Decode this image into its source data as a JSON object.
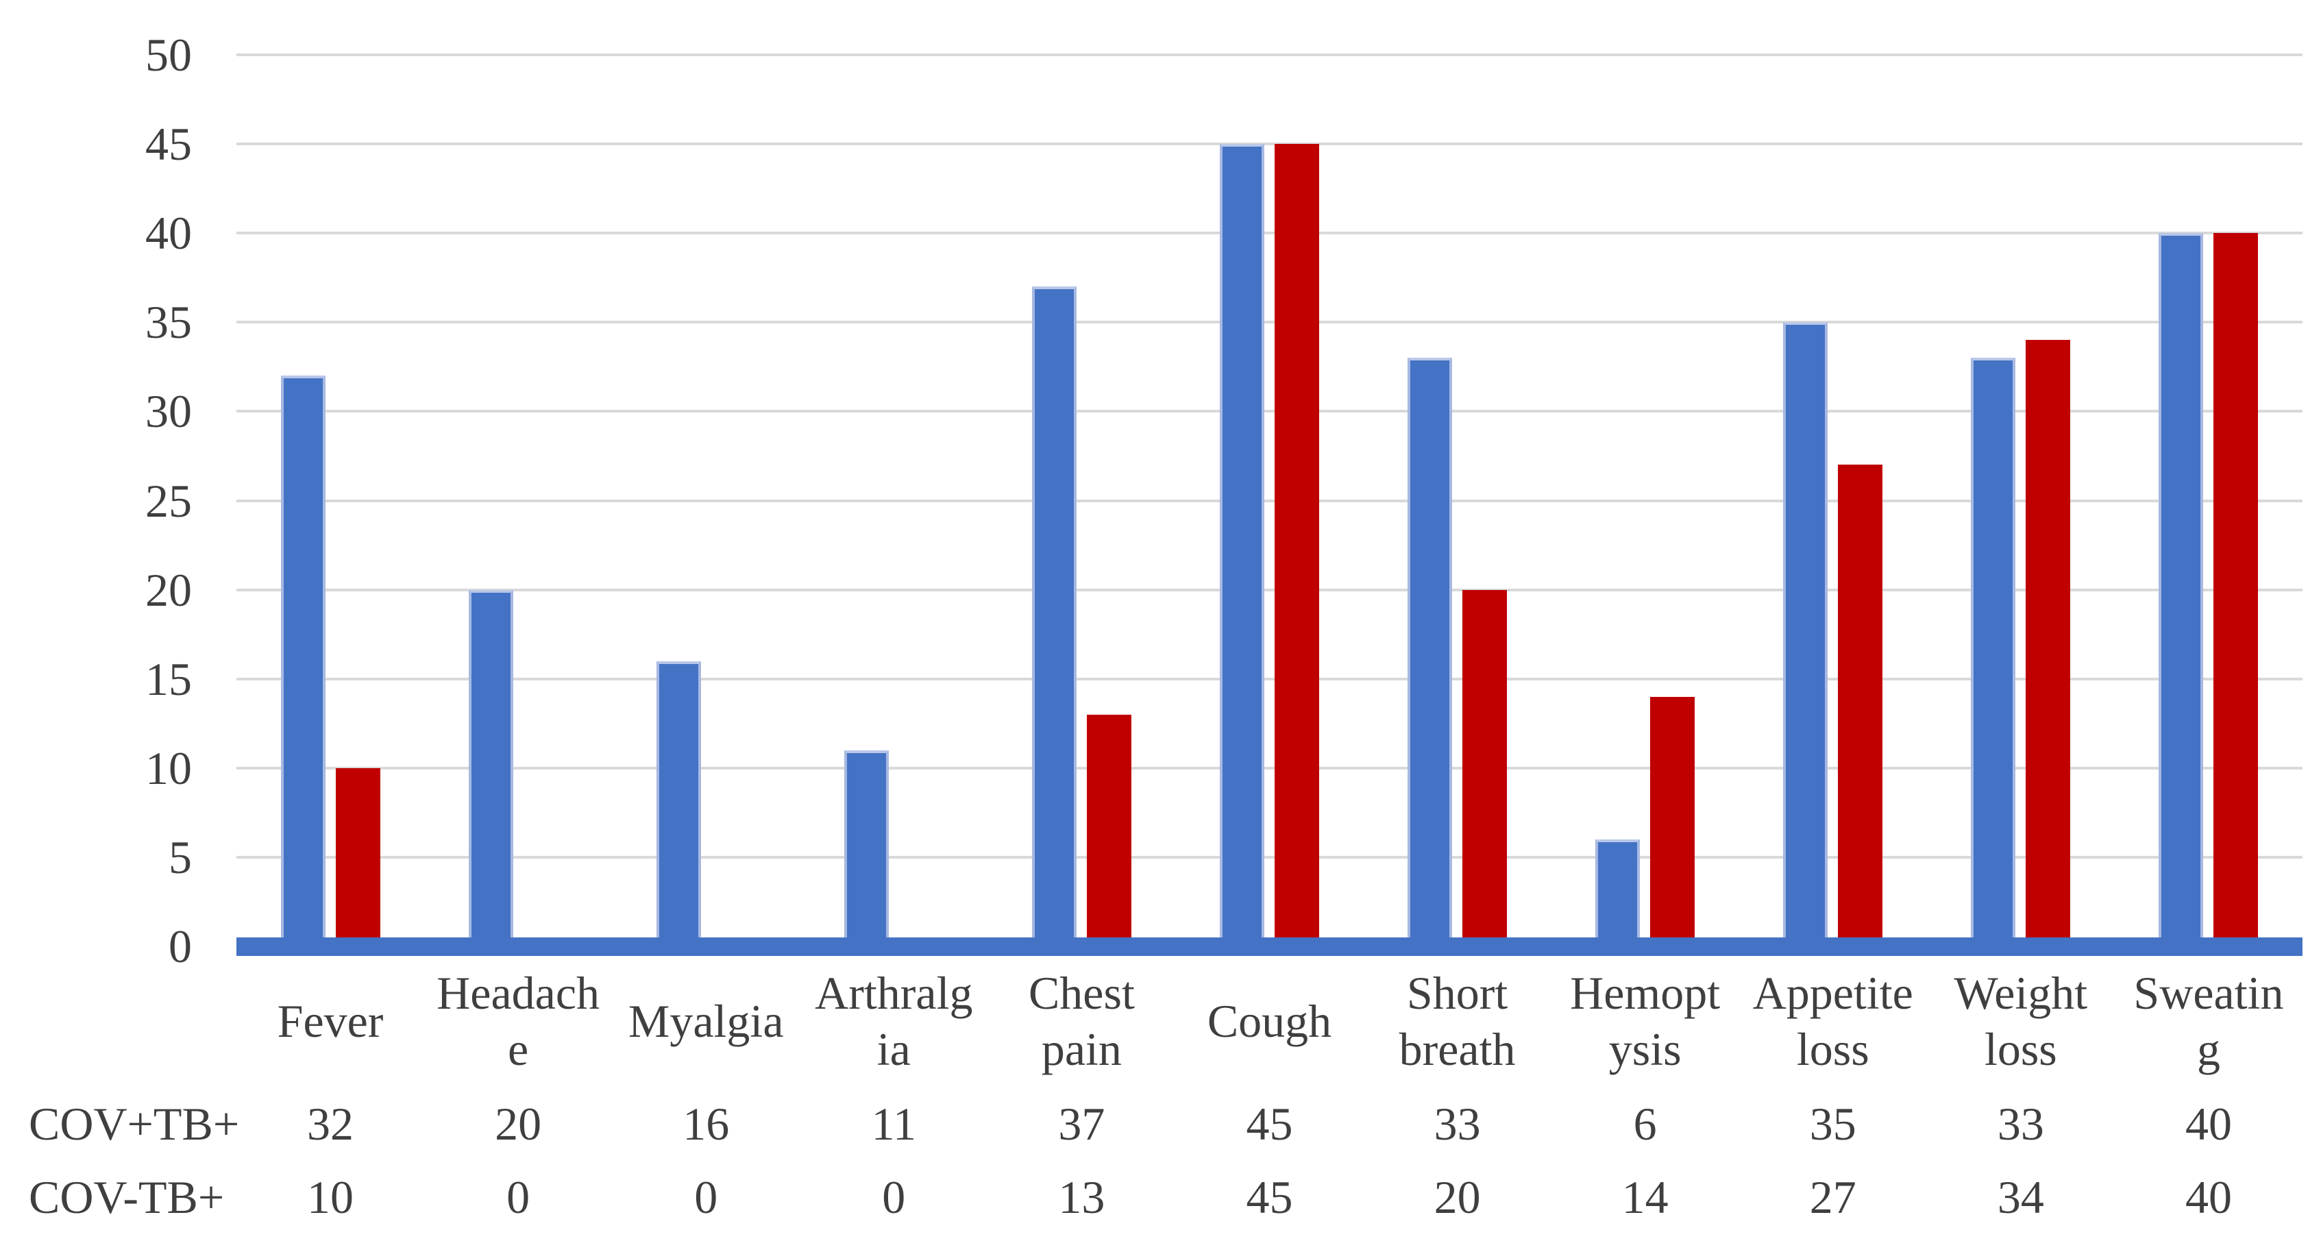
{
  "figure": {
    "background_color": "#FFFFFF",
    "text_color": "#3F3F3F"
  },
  "chart_data": {
    "type": "bar",
    "title": "",
    "xlabel": "",
    "ylabel": "",
    "categories": [
      "Fever",
      "Headache",
      "Myalgia",
      "Arthralgia",
      "Chest pain",
      "Cough",
      "Short breath",
      "Hemoptysis",
      "Appetite loss",
      "Weight loss",
      "Sweating"
    ],
    "categories_display": [
      [
        "Fever"
      ],
      [
        "Headach",
        "e"
      ],
      [
        "Myalgia"
      ],
      [
        "Arthralg",
        "ia"
      ],
      [
        "Chest",
        "pain"
      ],
      [
        "Cough"
      ],
      [
        "Short",
        "breath"
      ],
      [
        "Hemopt",
        "ysis"
      ],
      [
        "Appetite",
        "loss"
      ],
      [
        "Weight",
        "loss"
      ],
      [
        "Sweatin",
        "g"
      ]
    ],
    "series": [
      {
        "name": "COV+TB+",
        "color": "#4472C4",
        "edge": true,
        "values": [
          32,
          20,
          16,
          11,
          37,
          45,
          33,
          6,
          35,
          33,
          40
        ]
      },
      {
        "name": "COV-TB+",
        "color": "#C00000",
        "edge": false,
        "values": [
          10,
          0,
          0,
          0,
          13,
          45,
          20,
          14,
          27,
          34,
          40
        ]
      }
    ],
    "ylim": [
      0,
      50
    ],
    "yticks": [
      0,
      5,
      10,
      15,
      20,
      25,
      30,
      35,
      40,
      45,
      50
    ],
    "grid": true,
    "gridline_color": "#D9D9D9",
    "axis_band_color": "#4472C4",
    "legend_position": "table-below-axis"
  }
}
